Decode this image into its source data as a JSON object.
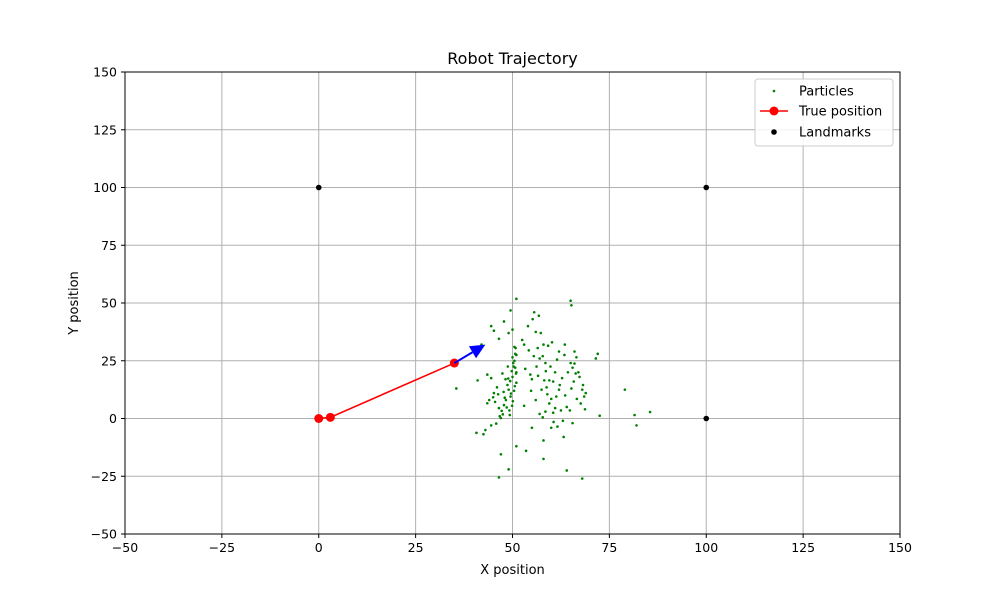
{
  "chart_data": {
    "type": "scatter",
    "title": "Robot Trajectory",
    "xlabel": "X position",
    "ylabel": "Y position",
    "xlim": [
      -50,
      150
    ],
    "ylim": [
      -50,
      150
    ],
    "xticks": [
      -50,
      -25,
      0,
      25,
      50,
      75,
      100,
      125,
      150
    ],
    "yticks": [
      -50,
      -25,
      0,
      25,
      50,
      75,
      100,
      125,
      150
    ],
    "grid": true,
    "legend_position": "top-right",
    "series": [
      {
        "name": "Particles",
        "kind": "scatter",
        "color": "#008000",
        "points": [
          [
            40.7,
            -6.2
          ],
          [
            42.5,
            -6.8
          ],
          [
            43.0,
            -5.0
          ],
          [
            43.5,
            6.6
          ],
          [
            44.0,
            8.0
          ],
          [
            44.5,
            -3.0
          ],
          [
            45.0,
            9.2
          ],
          [
            45.5,
            7.2
          ],
          [
            45.8,
            -2.2
          ],
          [
            46.0,
            13.5
          ],
          [
            46.3,
            10.5
          ],
          [
            46.7,
            1.0
          ],
          [
            47.0,
            0.2
          ],
          [
            47.2,
            3.3
          ],
          [
            47.5,
            1.8
          ],
          [
            47.7,
            11.5
          ],
          [
            48.0,
            9.0
          ],
          [
            48.3,
            8.0
          ],
          [
            48.5,
            4.8
          ],
          [
            48.7,
            14.5
          ],
          [
            48.9,
            17.3
          ],
          [
            49.0,
            12.5
          ],
          [
            49.2,
            3.5
          ],
          [
            49.4,
            16.2
          ],
          [
            49.6,
            10.8
          ],
          [
            49.8,
            20.5
          ],
          [
            50.0,
            18.0
          ],
          [
            50.1,
            7.5
          ],
          [
            50.3,
            22.5
          ],
          [
            50.5,
            25.0
          ],
          [
            50.6,
            14.0
          ],
          [
            50.7,
            28.0
          ],
          [
            50.8,
            30.5
          ],
          [
            50.9,
            19.5
          ],
          [
            51.0,
            27.5
          ],
          [
            51.0,
            15.5
          ],
          [
            50.4,
            12.0
          ],
          [
            50.2,
            24.0
          ],
          [
            49.9,
            5.5
          ],
          [
            49.5,
            9.5
          ],
          [
            48.2,
            17.0
          ],
          [
            47.8,
            5.8
          ],
          [
            46.5,
            4.5
          ],
          [
            45.2,
            11.0
          ],
          [
            49.3,
            1.5
          ],
          [
            50.7,
            22.0
          ],
          [
            50.0,
            26.5
          ],
          [
            51.0,
            20.0
          ],
          [
            48.8,
            22.5
          ],
          [
            47.4,
            19.5
          ],
          [
            44.5,
            40.0
          ],
          [
            45.2,
            38.0
          ],
          [
            46.5,
            34.5
          ],
          [
            47.8,
            42.0
          ],
          [
            49.0,
            37.0
          ],
          [
            49.5,
            46.8
          ],
          [
            50.0,
            38.5
          ],
          [
            50.5,
            31.0
          ],
          [
            51.0,
            51.8
          ],
          [
            52.5,
            34.0
          ],
          [
            53.0,
            32.0
          ],
          [
            53.3,
            21.5
          ],
          [
            54.0,
            40.0
          ],
          [
            54.2,
            29.5
          ],
          [
            54.6,
            19.0
          ],
          [
            55.0,
            17.0
          ],
          [
            55.2,
            43.0
          ],
          [
            55.6,
            46.0
          ],
          [
            56.0,
            37.5
          ],
          [
            56.2,
            22.5
          ],
          [
            56.5,
            30.5
          ],
          [
            56.6,
            18.5
          ],
          [
            56.8,
            44.5
          ],
          [
            57.0,
            26.0
          ],
          [
            57.3,
            37.0
          ],
          [
            57.5,
            12.5
          ],
          [
            57.8,
            27.0
          ],
          [
            58.0,
            32.0
          ],
          [
            58.2,
            16.5
          ],
          [
            58.5,
            24.0
          ],
          [
            58.6,
            20.5
          ],
          [
            59.0,
            10.5
          ],
          [
            59.2,
            31.5
          ],
          [
            59.5,
            6.5
          ],
          [
            59.8,
            22.5
          ],
          [
            60.0,
            8.5
          ],
          [
            60.2,
            33.0
          ],
          [
            60.5,
            2.5
          ],
          [
            60.6,
            -1.5
          ],
          [
            61.0,
            20.0
          ],
          [
            61.3,
            9.5
          ],
          [
            61.6,
            -3.5
          ],
          [
            62.0,
            29.0
          ],
          [
            62.2,
            14.5
          ],
          [
            62.5,
            3.5
          ],
          [
            62.8,
            17.5
          ],
          [
            63.0,
            -1.0
          ],
          [
            63.4,
            27.5
          ],
          [
            63.6,
            10.0
          ],
          [
            64.0,
            5.0
          ],
          [
            64.3,
            20.0
          ],
          [
            64.8,
            3.5
          ],
          [
            65.0,
            24.0
          ],
          [
            65.2,
            13.0
          ],
          [
            65.5,
            22.0
          ],
          [
            65.8,
            16.0
          ],
          [
            66.0,
            23.8
          ],
          [
            66.3,
            19.5
          ],
          [
            66.6,
            8.5
          ],
          [
            67.0,
            20.0
          ],
          [
            67.3,
            18.0
          ],
          [
            67.6,
            6.5
          ],
          [
            68.0,
            12.5
          ],
          [
            68.2,
            14.5
          ],
          [
            68.5,
            9.5
          ],
          [
            68.7,
            4.0
          ],
          [
            68.9,
            11.0
          ],
          [
            65.5,
            -2.0
          ],
          [
            63.2,
            -8.0
          ],
          [
            60.0,
            -4.0
          ],
          [
            58.0,
            -9.5
          ],
          [
            55.0,
            -4.0
          ],
          [
            51.0,
            -12.0
          ],
          [
            53.5,
            -14.0
          ],
          [
            58.0,
            -17.5
          ],
          [
            64.0,
            -22.5
          ],
          [
            68.0,
            -26.0
          ],
          [
            49.0,
            -22.0
          ],
          [
            47.0,
            -15.5
          ],
          [
            46.5,
            -25.5
          ],
          [
            65.0,
            51.0
          ],
          [
            65.2,
            49.0
          ],
          [
            66.0,
            29.0
          ],
          [
            72.0,
            28.0
          ],
          [
            71.5,
            26.0
          ],
          [
            72.5,
            1.2
          ],
          [
            79.0,
            12.5
          ],
          [
            81.5,
            1.5
          ],
          [
            82.0,
            -3.0
          ],
          [
            85.5,
            2.8
          ],
          [
            35.5,
            13.0
          ],
          [
            41.0,
            16.5
          ],
          [
            42.0,
            32.0
          ],
          [
            43.5,
            19.0
          ],
          [
            44.5,
            17.5
          ],
          [
            58.5,
            3.0
          ],
          [
            57.0,
            2.0
          ],
          [
            61.0,
            4.5
          ],
          [
            62.0,
            12.5
          ],
          [
            59.5,
            16.5
          ],
          [
            56.0,
            8.0
          ],
          [
            54.8,
            12.0
          ],
          [
            53.0,
            5.5
          ],
          [
            58.8,
            13.5
          ],
          [
            61.5,
            25.5
          ],
          [
            63.5,
            32.0
          ],
          [
            66.5,
            26.5
          ],
          [
            60.5,
            16.0
          ],
          [
            55.5,
            27.0
          ],
          [
            57.8,
            0.5
          ]
        ]
      },
      {
        "name": "True position",
        "kind": "line",
        "color": "#ff0000",
        "x": [
          0,
          3,
          35
        ],
        "y": [
          0,
          0.5,
          24
        ]
      },
      {
        "name": "Landmarks",
        "kind": "scatter",
        "color": "#000000",
        "points": [
          [
            0,
            100
          ],
          [
            100,
            100
          ],
          [
            100,
            0
          ]
        ]
      }
    ],
    "arrow": {
      "color": "#0000ff",
      "from": [
        35,
        24
      ],
      "to": [
        43,
        32
      ]
    }
  }
}
